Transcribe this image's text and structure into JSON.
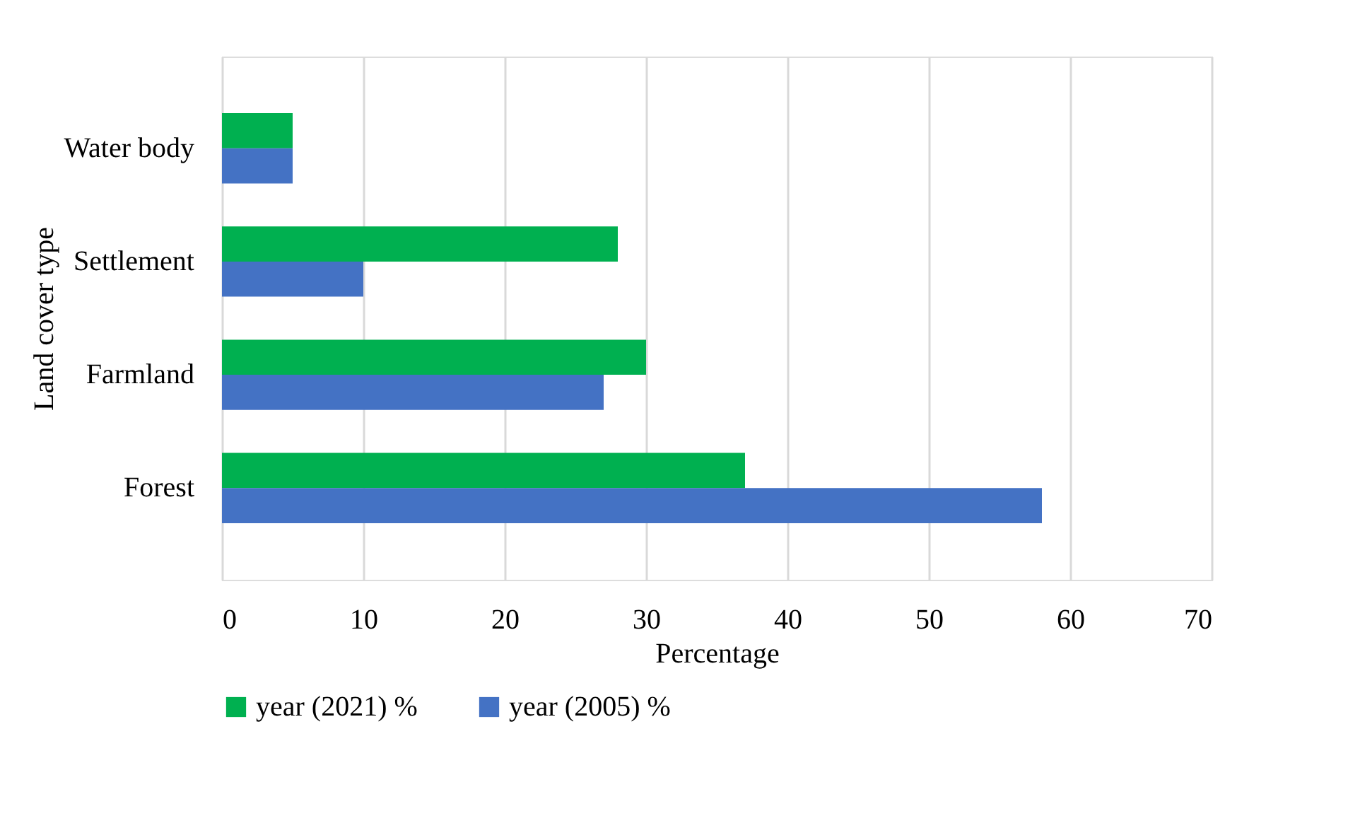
{
  "chart_data": {
    "type": "bar",
    "orientation": "horizontal",
    "xlabel": "Percentage",
    "ylabel": "Land cover type",
    "categories": [
      "Water body",
      "Settlement",
      "Farmland",
      "Forest"
    ],
    "series": [
      {
        "name": "year (2021) %",
        "color": "#00b050",
        "values": [
          5,
          28,
          30,
          37
        ]
      },
      {
        "name": "year (2005) %",
        "color": "#4472c4",
        "values": [
          5,
          10,
          27,
          58
        ]
      }
    ],
    "xlim": [
      0,
      70
    ],
    "xticks": [
      0,
      10,
      20,
      30,
      40,
      50,
      60,
      70
    ],
    "grid": "x",
    "legend": "bottom"
  }
}
